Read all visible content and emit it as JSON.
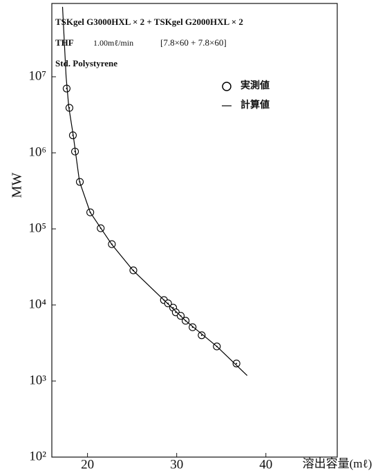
{
  "chart_data": {
    "type": "scatter",
    "annotations": [
      "TSKgel G3000HXL × 2 + TSKgel G2000HXL × 2",
      "THF",
      "1.00mℓ/min",
      "[7.8×60 + 7.8×60]",
      "Std. Polystyrene"
    ],
    "x_label": "溶出容量(mℓ)",
    "y_label": "MW",
    "xlim": [
      16,
      48
    ],
    "xticks": [
      20,
      30,
      40
    ],
    "ylim": [
      100,
      100000000
    ],
    "ylog": true,
    "yticks": [
      {
        "value": 100,
        "label": "10²"
      },
      {
        "value": 1000,
        "label": "10³"
      },
      {
        "value": 10000,
        "label": "10⁴"
      },
      {
        "value": 100000,
        "label": "10⁵"
      },
      {
        "value": 1000000,
        "label": "10⁶"
      },
      {
        "value": 10000000,
        "label": "10⁷"
      }
    ],
    "legend": "upper right",
    "series": [
      {
        "name": "実測値",
        "type": "scatter",
        "color": "#000000",
        "x": [
          17.66,
          17.97,
          18.36,
          18.6,
          19.14,
          20.31,
          21.48,
          22.73,
          25.14,
          28.57,
          29.03,
          29.6,
          29.9,
          30.45,
          31.0,
          31.78,
          32.8,
          34.5,
          36.7
        ],
        "values": [
          7000000,
          3900000,
          1700000,
          1040000,
          415000,
          165000,
          102000,
          63000,
          28500,
          11600,
          10500,
          9200,
          8000,
          7200,
          6200,
          5100,
          4000,
          2850,
          1700
        ]
      },
      {
        "name": "計算値",
        "type": "line",
        "color": "#000000",
        "x": [
          17.2,
          17.6,
          17.9,
          18.4,
          19.1,
          20.3,
          22.7,
          25.1,
          28.6,
          31.0,
          34.5,
          37.9
        ],
        "values": [
          83000000,
          10000000,
          4000000,
          1700000,
          420000,
          165000,
          63000,
          28500,
          11500,
          6200,
          2850,
          1180
        ]
      }
    ]
  }
}
